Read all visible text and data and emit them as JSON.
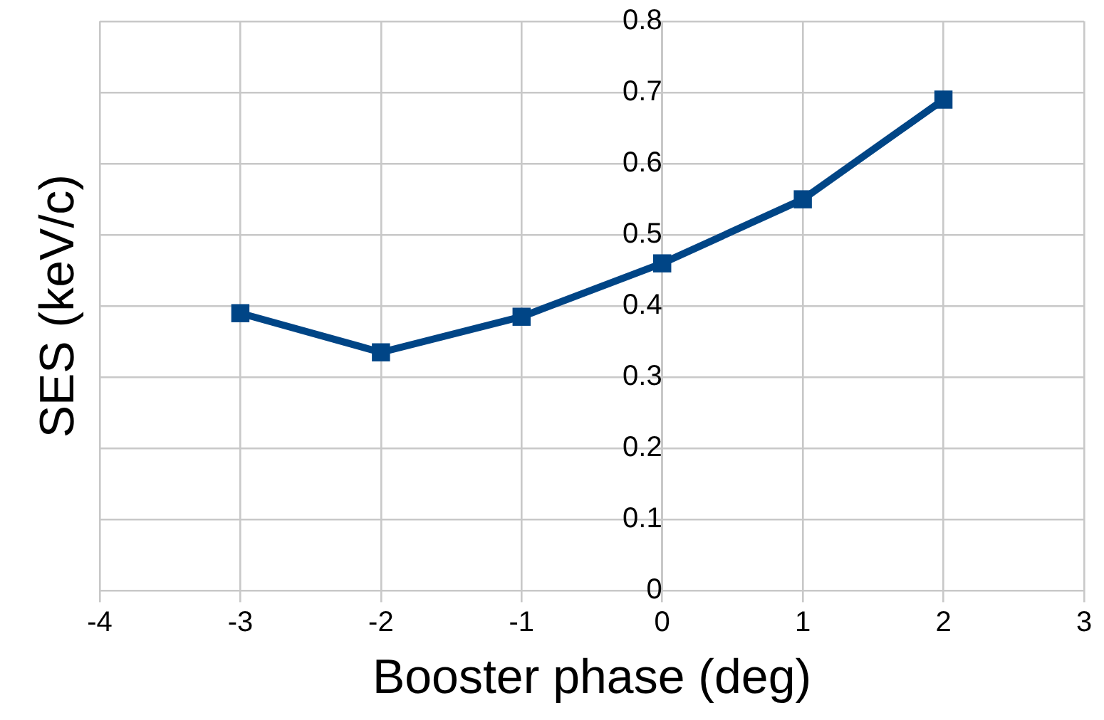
{
  "chart_data": {
    "type": "line",
    "xlabel": "Booster phase (deg)",
    "ylabel": "SES (keV/c)",
    "x": [
      -3,
      -2,
      -1,
      0,
      1,
      2
    ],
    "series": [
      {
        "color": "#004586",
        "values": [
          0.39,
          0.335,
          0.385,
          0.46,
          0.55,
          0.69
        ]
      }
    ],
    "xlim": [
      -4,
      3
    ],
    "xticks": [
      -4,
      -3,
      -2,
      -1,
      0,
      1,
      2,
      3
    ],
    "ylim": [
      0,
      0.8
    ],
    "yticks": [
      0,
      0.1,
      0.2,
      0.3,
      0.4,
      0.5,
      0.6,
      0.7,
      0.8
    ],
    "grid": true,
    "marker": "square",
    "line_style": "solid",
    "legend": false
  }
}
